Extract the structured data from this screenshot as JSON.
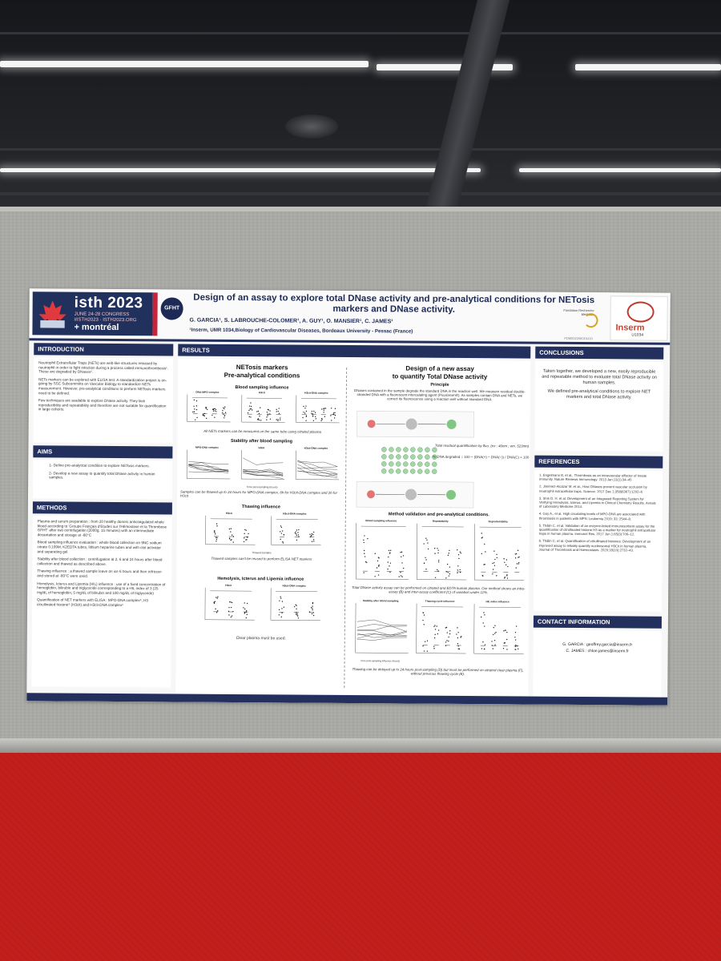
{
  "poster": {
    "isth": {
      "brand": "isth 2023",
      "dates": "JUNE 24-28 CONGRESS",
      "tag": "#ISTH2023 · ISTH2023.ORG",
      "city": "+ montréal"
    },
    "gfht": "GFHT",
    "title": "Design of an assay to explore total DNase activity and pre-analytical conditions for NETosis markers and DNase activity.",
    "authors": "G. GARCIA¹, S. LABROUCHE-COLOMER¹, A. GUY¹, O. MANSIER¹, C. JAMES¹",
    "affiliation": "¹Inserm, UMR 1034,Biology of Cardiovascular Diseases, Bordeaux University - Pessac (France)",
    "frm": "Fondation Recherche Médicale",
    "fdm_code": "FDM202206015410",
    "inserm": {
      "name": "Inserm",
      "unit": "U1034"
    },
    "introduction": {
      "heading": "INTRODUCTION",
      "paragraphs": [
        "Neutrophil Extracellular Traps (NETs) are web-like structures released by neutrophil in order to fight infection during a process called immunothrombosis¹. These are degraded by DNases².",
        "NETs markers can be explored with ELISA test. A standardization project is on-going by SSC Subcommitte on Vascular Biology to standardize NETs measurement. However, pre-analytical conditions to perform NETosis markers need to be defined.",
        "Few techniques are available to explore DNase activity. They lack reproducibility and repeatability and therefore are not suitable for quantification in large cohorts."
      ]
    },
    "aims": {
      "heading": "AIMS",
      "items": [
        "1- Define pre-analytical condition to explore NETosis markers.",
        "2- Develop a new assay to quantify total DNase activity in human samples."
      ]
    },
    "methods": {
      "heading": "METHODS",
      "paragraphs": [
        "Plasma and serum preparation : from 20 healthy donors anticoagulated whole blood according to 'Groupe Français d'Etudes sur l'Hémostase et la Thrombose GFHT' after two centrifugation (2000g, 15 minutes) with an intermediate decantation and storage at -80°C",
        "Blood sampling influence evaluation : whole blood collection on 9NC sodium citrate 0.109M, K2EDTA tubes, lithium heparine tubes and with clot activator and separating gel.",
        "Stability after blood collection : centrifugation at 2, 6 and 24 hours after blood collection and thawed as described above.",
        "Thawing influence : a thawed sample leave on ice 6 hours and then refrozen and stored at -80°C were used.",
        "Hemolysis, Icterus and Lipemia (HIL) influence : use of a fixed concentration of hemoglobin, bilirubin and triglyceride corresponding to a HIL index of 3 (25 mg/dL of hemoglobin, 5 mg/dL of bilirubin and 100 mg/dL of triglyceride)",
        "Quantification of NET markers with ELISA : MPO-DNA complex⁶, H3 citrullinated histone⁵ (H3cit) and H3cit-DNA complex⁶"
      ]
    },
    "results": {
      "heading": "RESULTS",
      "left_title": "NETosis markers",
      "left_subtitle": "Pre-analytical conditions",
      "blood_sampling": {
        "title": "Blood sampling influence",
        "charts": [
          "DNA-MPO complex",
          "H3cit",
          "H3cit-DNA complex"
        ],
        "caption": "All NETs markers can be measured on the same tube using citrated plasma"
      },
      "stability": {
        "title": "Stability after blood sampling",
        "charts": [
          "MPO-DNA complex",
          "H3cit",
          "H3cit-DNA complex"
        ],
        "xlabel": "Time post-sampling (hours)",
        "caption": "Samples can be thawed up to 24 hours for MPO-DNA complex, 6h for H3cit-DNA complex and 2h for H3cit"
      },
      "thawing": {
        "title": "Thawing influence",
        "charts": [
          "H3cit",
          "H3cit-DNA complex"
        ],
        "xlabel": "Thawed samples",
        "caption": "Thawed samples can't be reused to perform ELISA NET markers"
      },
      "hil": {
        "title": "Hemolysis, Icterus and Lipemia influence",
        "charts": [
          "H3cit",
          "H3cit-DNA complex"
        ],
        "caption": "Clear plasma must be used."
      },
      "right_title": "Design of a new assay",
      "right_subtitle": "to quantify Total DNase activity",
      "principle": {
        "title": "Principle",
        "text": "DNases contained in the sample degrade the standard DNA in the reaction well. We measure residual double-stranded DNA with a fluorescent intercalating agent (PicoGreen®). As samples contain DNA and NETs, we correct its fluorescence using a reaction well without standard DNA.",
        "fluo_caption": "Total residual quantification by fluo. (ex : 40nm ; em. 523nm)",
        "formula": "% DNA degraded = 100 − (DNA(+) − DNA(−)) / DNA(C) × 100"
      },
      "validation": {
        "title": "Method validation and pre-analytical conditions.",
        "charts": [
          "Blood sampling influence",
          "Repeatability",
          "Reproductibility"
        ],
        "caption": "Total DNase activity assay can be performed on citrated and EDTA human plasma. Our method shows an intra-assay (B) and inter-assay coefficient (C) of variation under 11%."
      },
      "stability2": {
        "charts": [
          "Stability after blood sampling",
          "Thawing cycle influence",
          "HIL index influence"
        ],
        "xlabel": "Time post-sampling influence (hours)",
        "caption": "Thawing can be delayed up to 24 hours post-sampling (D) but must be performed on citrated clear plasma (F), without previous thawing cycle (E)."
      }
    },
    "conclusions": {
      "heading": "CONCLUSIONS",
      "paragraphs": [
        "Taken together, we developed a new, easily reproducible and repeatable method to evaluate total DNase activity on human samples.",
        "We defined pre-analytical conditions to explore NET markers and total DNase activity."
      ]
    },
    "references": {
      "heading": "REFERENCES",
      "items": [
        "1. Engelmann B, et al., Thrombosis as an intravascular effector of innate immunity. Nature Reviews Immunology. 2013 Jan;13(1):34–45",
        "2. Jiménez-Alcázar M. et al., Host DNases prevent vascular occlusion by neutrophil extracellular traps. Science. 2017 Dec 1;358(6367):1202–6",
        "3. Shin D. H. et al. Development of an Integrated Reporting System for Verifying Hemolysis, Icterus, and Lipemia in Clinical Chemistry Results. Annals of Laboratory Medicine 2014.",
        "4. Guy A., et al. High circulating levels of MPO-DNA are associated with thrombosis in patients with MPN. Leukemia 2019; 33: 2544–8.",
        "5. Thâlin C. et al. Validation of an enzyme-linked immunosorbent assay for the quantification of citrullinated histone H3 as a marker for neutrophil extracellular traps in human plasma. Immunol Res. 2017 Jun 1;65(3):706–12.",
        "6. Thâlin C. et al. Quantification of citrullinated histones: Development of an improved assay to reliably quantify nucleosomal H3Cit in human plasma. Journal of Thrombosis and Haemostasis. 2020;18(10):2732–43."
      ]
    },
    "contact": {
      "heading": "CONTACT INFORMATION",
      "lines": [
        "G. GARCIA : geoffrey.garcia@inserm.fr",
        "C. JAMES : chloe.james@inserm.fr"
      ]
    }
  }
}
